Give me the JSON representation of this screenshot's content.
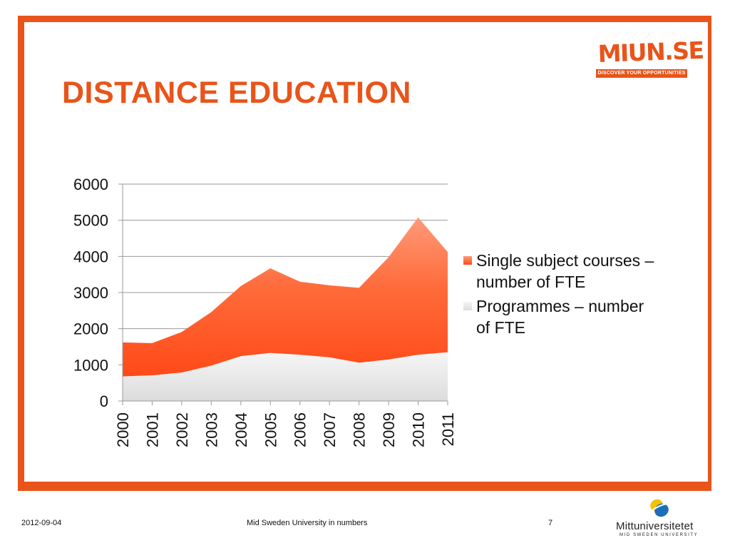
{
  "slide": {
    "title": "DISTANCE EDUCATION",
    "logo_text": "MIUN.SE",
    "logo_tagline": "DISCOVER YOUR OPPORTUNITIES",
    "accent_color": "#e8541a"
  },
  "footer": {
    "date": "2012-09-04",
    "center_text": "Mid Sweden University in numbers",
    "page_number": "7",
    "brand_name": "Mittuniversitetet",
    "brand_sub": "MID SWEDEN UNIVERSITY"
  },
  "chart_data": {
    "type": "area",
    "stacked": true,
    "x": [
      "2000",
      "2001",
      "2002",
      "2003",
      "2004",
      "2005",
      "2006",
      "2007",
      "2008",
      "2009",
      "2010",
      "2011"
    ],
    "ylim": [
      0,
      6000
    ],
    "yticks": [
      0,
      1000,
      2000,
      3000,
      4000,
      5000,
      6000
    ],
    "ytick_labels": [
      "0",
      "1000",
      "2000",
      "3000",
      "4000",
      "5000",
      "6000"
    ],
    "grid": true,
    "legend_position": "right",
    "series": [
      {
        "name": "Programmes – number of FTE",
        "color": "#ebebeb",
        "values": [
          680,
          710,
          790,
          980,
          1240,
          1330,
          1280,
          1210,
          1060,
          1150,
          1280,
          1350
        ]
      },
      {
        "name": "Single subject courses – number of FTE",
        "color": "#ff5a26",
        "values": [
          940,
          890,
          1120,
          1480,
          1940,
          2340,
          2020,
          1990,
          2070,
          2830,
          3800,
          2770
        ]
      }
    ],
    "legend": [
      {
        "label": "Single subject courses – number of FTE",
        "color": "#ff5a26"
      },
      {
        "label": "Programmes – number of FTE",
        "color": "#ebebeb"
      }
    ]
  }
}
